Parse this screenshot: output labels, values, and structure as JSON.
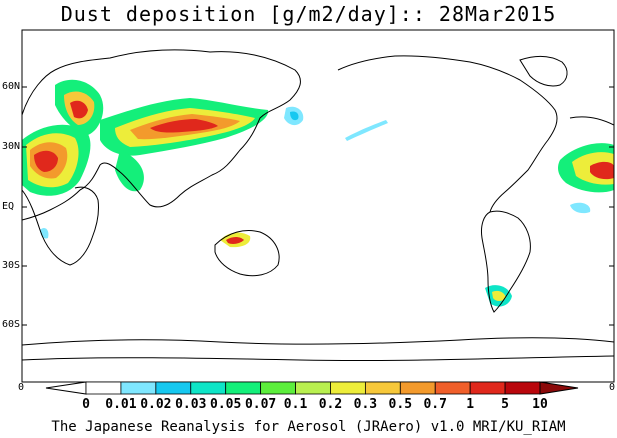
{
  "title": "Dust deposition [g/m2/day]:: 28Mar2015",
  "lat_labels": [
    "60N",
    "30N",
    "EQ",
    "30S",
    "60S"
  ],
  "corner_left": "0",
  "corner_right": "0",
  "colorbar": {
    "labels": [
      "0",
      "0.01",
      "0.02",
      "0.03",
      "0.05",
      "0.07",
      "0.1",
      "0.2",
      "0.3",
      "0.5",
      "0.7",
      "1",
      "5",
      "10"
    ],
    "colors": [
      "#ffffff",
      "#ffffff",
      "#7fe7ff",
      "#16c8f0",
      "#0ee5c7",
      "#14ef7a",
      "#5cee3c",
      "#b9f050",
      "#eded3a",
      "#f7c83a",
      "#f39a2c",
      "#f05f2a",
      "#e0281c",
      "#b9060c",
      "#8b0a0a"
    ]
  },
  "credit": "The Japanese Reanalysis for Aerosol (JRAero) v1.0 MRI/KU_RIAM"
}
